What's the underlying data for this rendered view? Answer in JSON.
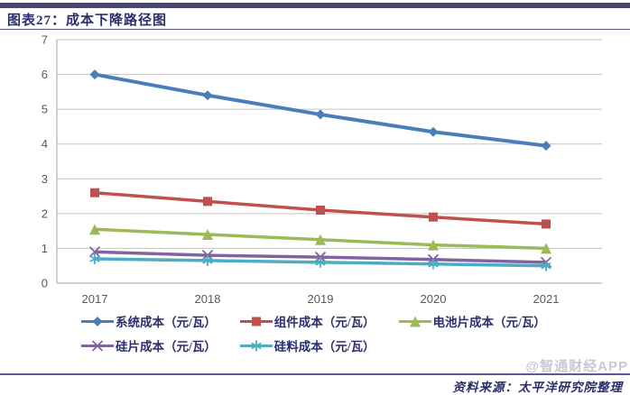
{
  "header": {
    "title": "图表27：成本下降路径图"
  },
  "chart_data": {
    "type": "line",
    "title": "成本下降路径图",
    "categories": [
      "2017",
      "2018",
      "2019",
      "2020",
      "2021"
    ],
    "series": [
      {
        "name": "系统成本（元/瓦）",
        "color": "#4A7EBB",
        "marker": "diamond",
        "values": [
          6.0,
          5.4,
          4.85,
          4.35,
          3.95
        ]
      },
      {
        "name": "组件成本（元/瓦）",
        "color": "#C0504D",
        "marker": "square",
        "values": [
          2.6,
          2.35,
          2.1,
          1.9,
          1.7
        ]
      },
      {
        "name": "电池片成本（元/瓦）",
        "color": "#9BBB59",
        "marker": "triangle",
        "values": [
          1.55,
          1.4,
          1.25,
          1.1,
          1.0
        ]
      },
      {
        "name": "硅片成本（元/瓦）",
        "color": "#8064A2",
        "marker": "x",
        "values": [
          0.9,
          0.8,
          0.75,
          0.68,
          0.6
        ]
      },
      {
        "name": "硅料成本（元/瓦）",
        "color": "#4BACC6",
        "marker": "asterisk",
        "values": [
          0.7,
          0.65,
          0.6,
          0.55,
          0.5
        ]
      }
    ],
    "xlabel": "",
    "ylabel": "",
    "ylim": [
      0,
      7
    ],
    "yticks": [
      0,
      1,
      2,
      3,
      4,
      5,
      6,
      7
    ],
    "grid": true,
    "legend_position": "bottom"
  },
  "footer": {
    "source": "资料来源：太平洋研究院整理",
    "watermark": "@智通财经APP"
  },
  "colors": {
    "accent_bar": "#474772",
    "title_text": "#2B2E6B",
    "axis_text": "#595959",
    "gridline": "#C3C3C3",
    "divider": "#5B5B94",
    "watermark": "#C9C9D4"
  }
}
